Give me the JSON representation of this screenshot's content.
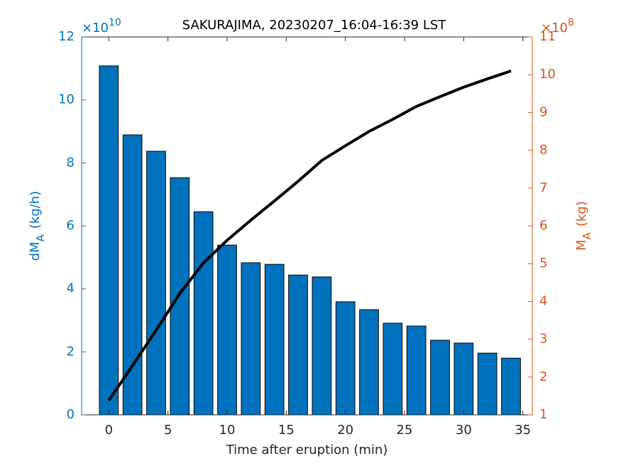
{
  "chart_data": {
    "type": "bar",
    "title": "SAKURAJIMA, 20230207_16:04-16:39 LST",
    "xlabel": "Time after eruption (min)",
    "ylabel": {
      "main": "dM",
      "sub": "A",
      "unit": "(kg/h)"
    },
    "y2label": {
      "main": "M",
      "sub": "A",
      "unit": "(kg)"
    },
    "y_exponent": {
      "base": "×10",
      "power": "10"
    },
    "y2_exponent": {
      "base": "×10",
      "power": "8"
    },
    "x": [
      0,
      2,
      4,
      6,
      8,
      10,
      12,
      14,
      16,
      18,
      20,
      22,
      24,
      26,
      28,
      30,
      32,
      34
    ],
    "series": [
      {
        "type": "bar",
        "axis": "y",
        "color": "#0072BD",
        "values": [
          11.08,
          8.89,
          8.37,
          7.53,
          6.45,
          5.39,
          4.83,
          4.78,
          4.44,
          4.38,
          3.59,
          3.34,
          2.91,
          2.82,
          2.37,
          2.28,
          1.96,
          1.8
        ]
      },
      {
        "type": "line",
        "axis": "y2",
        "color": "#000000",
        "values": [
          1.38,
          2.3,
          3.24,
          4.21,
          5.02,
          5.62,
          6.15,
          6.66,
          7.18,
          7.73,
          8.12,
          8.5,
          8.82,
          9.16,
          9.42,
          9.67,
          9.89,
          10.1
        ]
      }
    ],
    "xlim": [
      -2.3,
      35.8
    ],
    "xticks": [
      0,
      5,
      10,
      15,
      20,
      25,
      30,
      35
    ],
    "ylim": [
      0,
      12
    ],
    "yticks": [
      0,
      2,
      4,
      6,
      8,
      10,
      12
    ],
    "y2lim": [
      1,
      11
    ],
    "y2ticks": [
      1,
      2,
      3,
      4,
      5,
      6,
      7,
      8,
      9,
      10,
      11
    ],
    "y_color": "#0072BD",
    "y2_color": "#D95319"
  }
}
